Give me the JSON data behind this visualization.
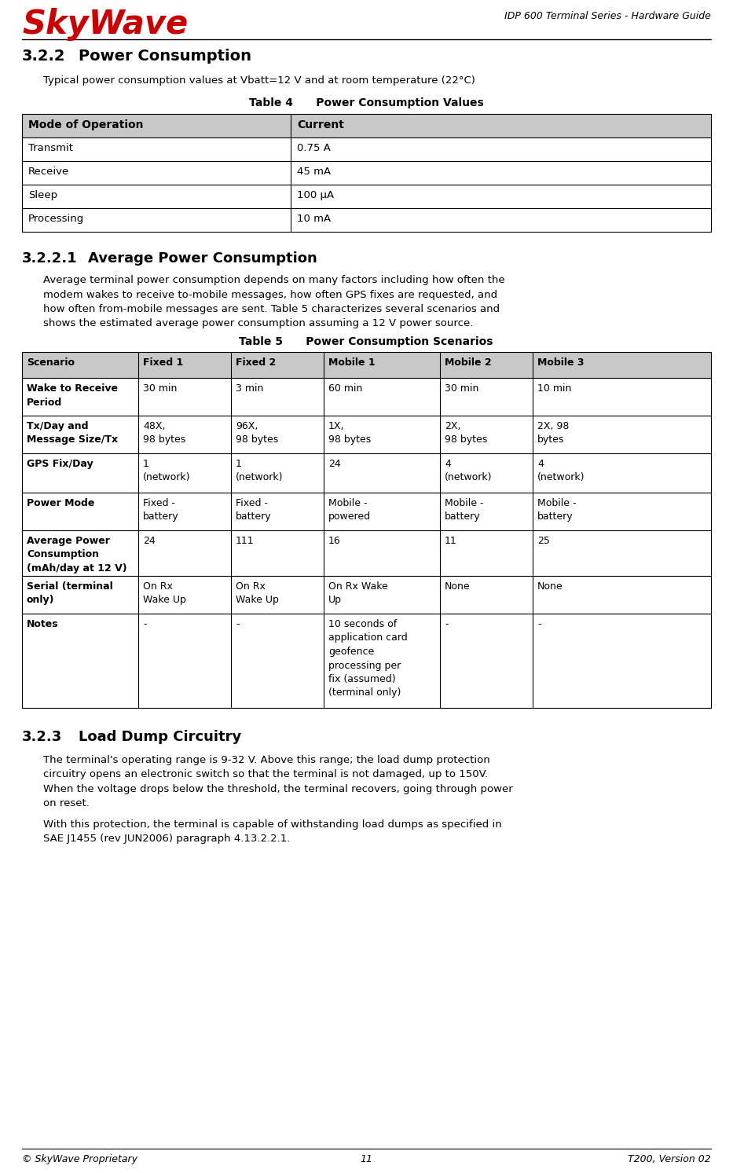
{
  "header_logo_text": "SkyWave",
  "header_logo_color": "#cc0000",
  "header_right_text": "IDP 600 Terminal Series - Hardware Guide",
  "footer_left": "© SkyWave Proprietary",
  "footer_center": "11",
  "footer_right": "T200, Version 02",
  "section_322_title": "3.2.2    Power Consumption",
  "section_322_body": "Typical power consumption values at Vbatt=12 V and at room temperature (22°C)",
  "table4_title": "Table 4      Power Consumption Values",
  "table4_headers": [
    "Mode of Operation",
    "Current"
  ],
  "table4_rows": [
    [
      "Transmit",
      "0.75 A"
    ],
    [
      "Receive",
      "45 mA"
    ],
    [
      "Sleep",
      "100 μA"
    ],
    [
      "Processing",
      "10 mA"
    ]
  ],
  "section_3221_title": "3.2.2.1    Average Power Consumption",
  "section_3221_body": "Average terminal power consumption depends on many factors including how often the\nmodem wakes to receive to-mobile messages, how often GPS fixes are requested, and\nhow often from-mobile messages are sent. Table 5 characterizes several scenarios and\nshows the estimated average power consumption assuming a 12 V power source.",
  "table5_title": "Table 5      Power Consumption Scenarios",
  "table5_headers": [
    "Scenario",
    "Fixed 1",
    "Fixed 2",
    "Mobile 1",
    "Mobile 2",
    "Mobile 3"
  ],
  "table5_rows": [
    [
      "Wake to Receive\nPeriod",
      "30 min",
      "3 min",
      "60 min",
      "30 min",
      "10 min"
    ],
    [
      "Tx/Day and\nMessage Size/Tx",
      "48X,\n98 bytes",
      "96X,\n98 bytes",
      "1X,\n98 bytes",
      "2X,\n98 bytes",
      "2X, 98\nbytes"
    ],
    [
      "GPS Fix/Day",
      "1\n(network)",
      "1\n(network)",
      "24",
      "4\n(network)",
      "4\n(network)"
    ],
    [
      "Power Mode",
      "Fixed -\nbattery",
      "Fixed -\nbattery",
      "Mobile -\npowered",
      "Mobile -\nbattery",
      "Mobile -\nbattery"
    ],
    [
      "Average Power\nConsumption\n(mAh/day at 12 V)",
      "24",
      "111",
      "16",
      "11",
      "25"
    ],
    [
      "Serial (terminal\nonly)",
      "On Rx\nWake Up",
      "On Rx\nWake Up",
      "On Rx Wake\nUp",
      "None",
      "None"
    ],
    [
      "Notes",
      "-",
      "-",
      "10 seconds of\napplication card\ngeofence\nprocessing per\nfix (assumed)\n(terminal only)",
      "-",
      "-"
    ]
  ],
  "section_323_title": "3.2.3    Load Dump Circuitry",
  "section_323_body1": "The terminal's operating range is 9-32 V. Above this range; the load dump protection\ncircuitry opens an electronic switch so that the terminal is not damaged, up to 150V.\nWhen the voltage drops below the threshold, the terminal recovers, going through power\non reset.",
  "section_323_body2": "With this protection, the terminal is capable of withstanding load dumps as specified in\nSAE J1455 (rev JUN2006) paragraph 4.13.2.2.1.",
  "bg_color": "#ffffff",
  "table_header_bg": "#c8c8c8",
  "table_border_color": "#000000"
}
